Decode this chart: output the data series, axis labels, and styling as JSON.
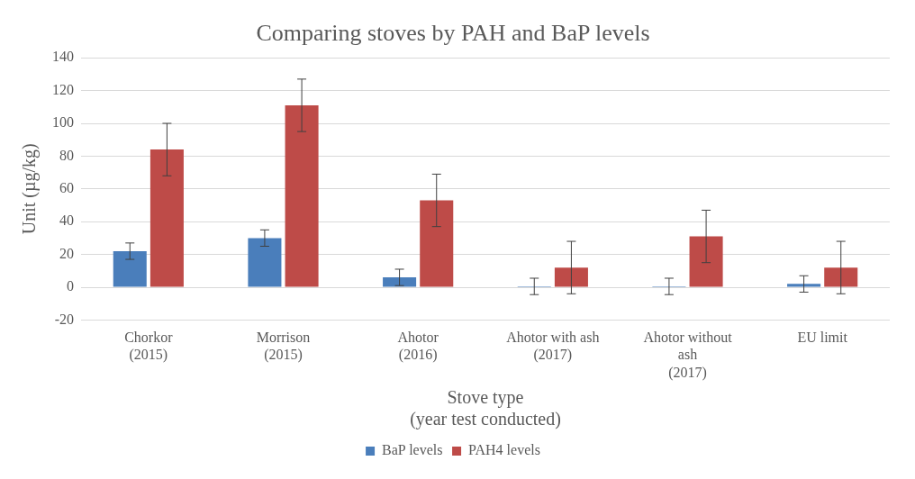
{
  "chart_data": {
    "type": "bar",
    "title": "Comparing stoves by PAH and BaP levels",
    "xlabel": "Stove type\n(year test conducted)",
    "ylabel": "Unit (µg/kg)",
    "categories": [
      "Chorkor\n(2015)",
      "Morrison\n(2015)",
      "Ahotor\n(2016)",
      "Ahotor with ash\n(2017)",
      "Ahotor without\nash\n(2017)",
      "EU limit"
    ],
    "series": [
      {
        "name": "BaP levels",
        "color": "#4a7ebb",
        "values": [
          22,
          30,
          6,
          0.5,
          0.5,
          2
        ],
        "errors": [
          5,
          5,
          5,
          5,
          5,
          5
        ]
      },
      {
        "name": "PAH4 levels",
        "color": "#be4b48",
        "values": [
          84,
          111,
          53,
          12,
          31,
          12
        ],
        "errors": [
          16,
          16,
          16,
          16,
          16,
          16
        ]
      }
    ],
    "ylim": [
      -20,
      140
    ],
    "yticks": [
      -20,
      0,
      20,
      40,
      60,
      80,
      100,
      120,
      140
    ],
    "grid": "y",
    "legend": "bottom"
  }
}
